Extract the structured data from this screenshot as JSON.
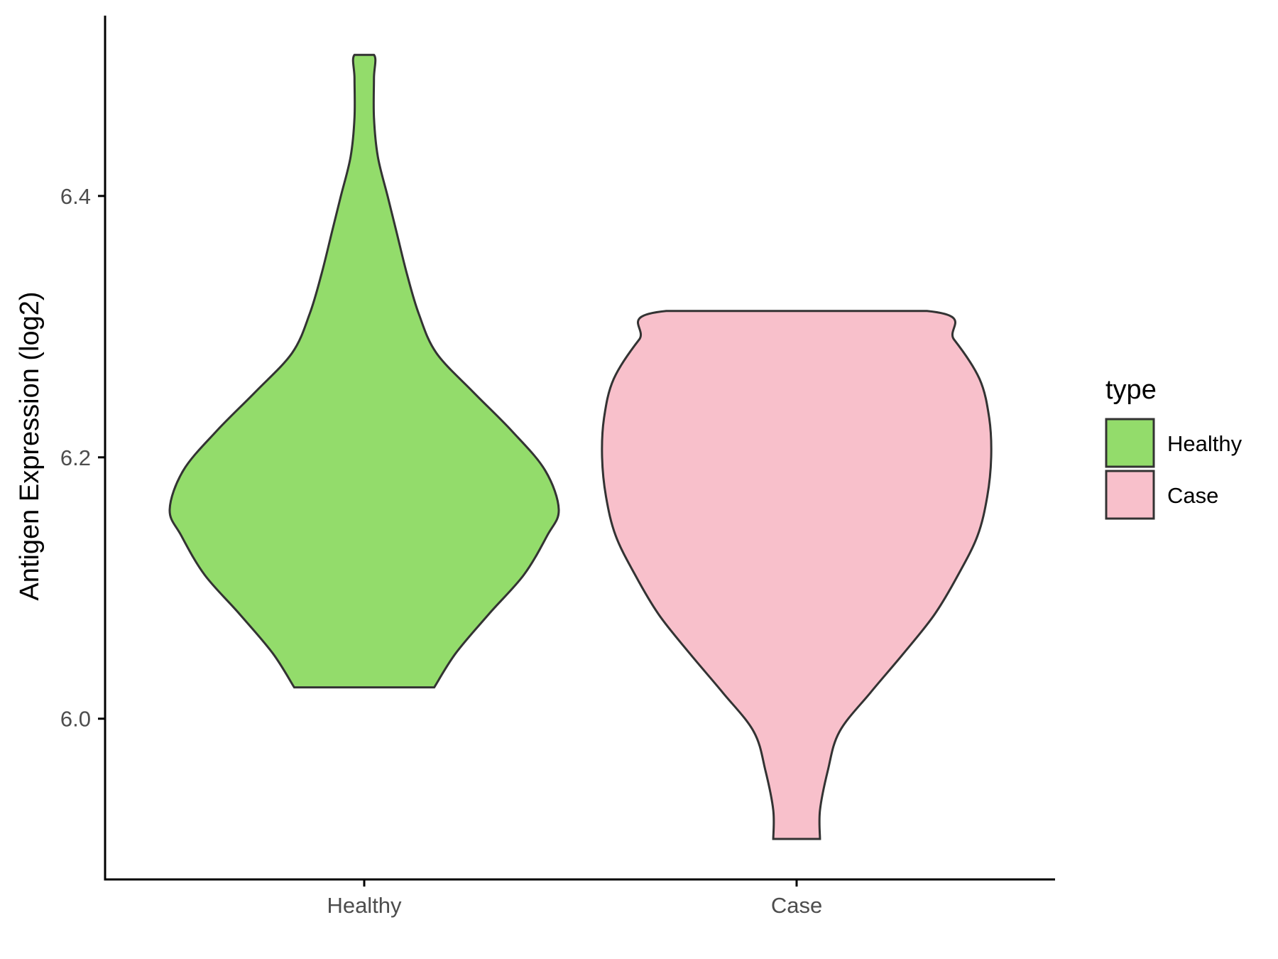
{
  "chart_data": {
    "type": "violin",
    "title": "",
    "xlabel": "",
    "ylabel": "Antigen Expression (log2)",
    "categories": [
      "Healthy",
      "Case"
    ],
    "ylim": [
      5.877,
      6.538
    ],
    "yticks": [
      "6.0",
      "6.2",
      "6.4"
    ],
    "ytick_values": [
      6.0,
      6.2,
      6.4
    ],
    "grid": false,
    "legend": {
      "title": "type",
      "position": "right",
      "entries": [
        "Healthy",
        "Case"
      ]
    },
    "series": [
      {
        "category": "Healthy",
        "color": "#93DC6B",
        "min": 6.024,
        "max": 6.508,
        "density": [
          [
            6.024,
            0.36
          ],
          [
            6.05,
            0.47
          ],
          [
            6.08,
            0.64
          ],
          [
            6.11,
            0.82
          ],
          [
            6.14,
            0.94
          ],
          [
            6.16,
            1.0
          ],
          [
            6.19,
            0.93
          ],
          [
            6.22,
            0.76
          ],
          [
            6.25,
            0.56
          ],
          [
            6.28,
            0.37
          ],
          [
            6.31,
            0.28
          ],
          [
            6.34,
            0.22
          ],
          [
            6.37,
            0.17
          ],
          [
            6.4,
            0.12
          ],
          [
            6.43,
            0.07
          ],
          [
            6.46,
            0.05
          ],
          [
            6.49,
            0.05
          ],
          [
            6.508,
            0.05
          ]
        ]
      },
      {
        "category": "Case",
        "color": "#F8C0CB",
        "min": 5.908,
        "max": 6.312,
        "density": [
          [
            5.908,
            0.12
          ],
          [
            5.93,
            0.12
          ],
          [
            5.96,
            0.16
          ],
          [
            5.99,
            0.22
          ],
          [
            6.02,
            0.38
          ],
          [
            6.05,
            0.55
          ],
          [
            6.08,
            0.71
          ],
          [
            6.11,
            0.83
          ],
          [
            6.14,
            0.93
          ],
          [
            6.17,
            0.98
          ],
          [
            6.2,
            1.0
          ],
          [
            6.23,
            0.99
          ],
          [
            6.26,
            0.94
          ],
          [
            6.29,
            0.81
          ],
          [
            6.312,
            0.67
          ]
        ]
      }
    ]
  }
}
